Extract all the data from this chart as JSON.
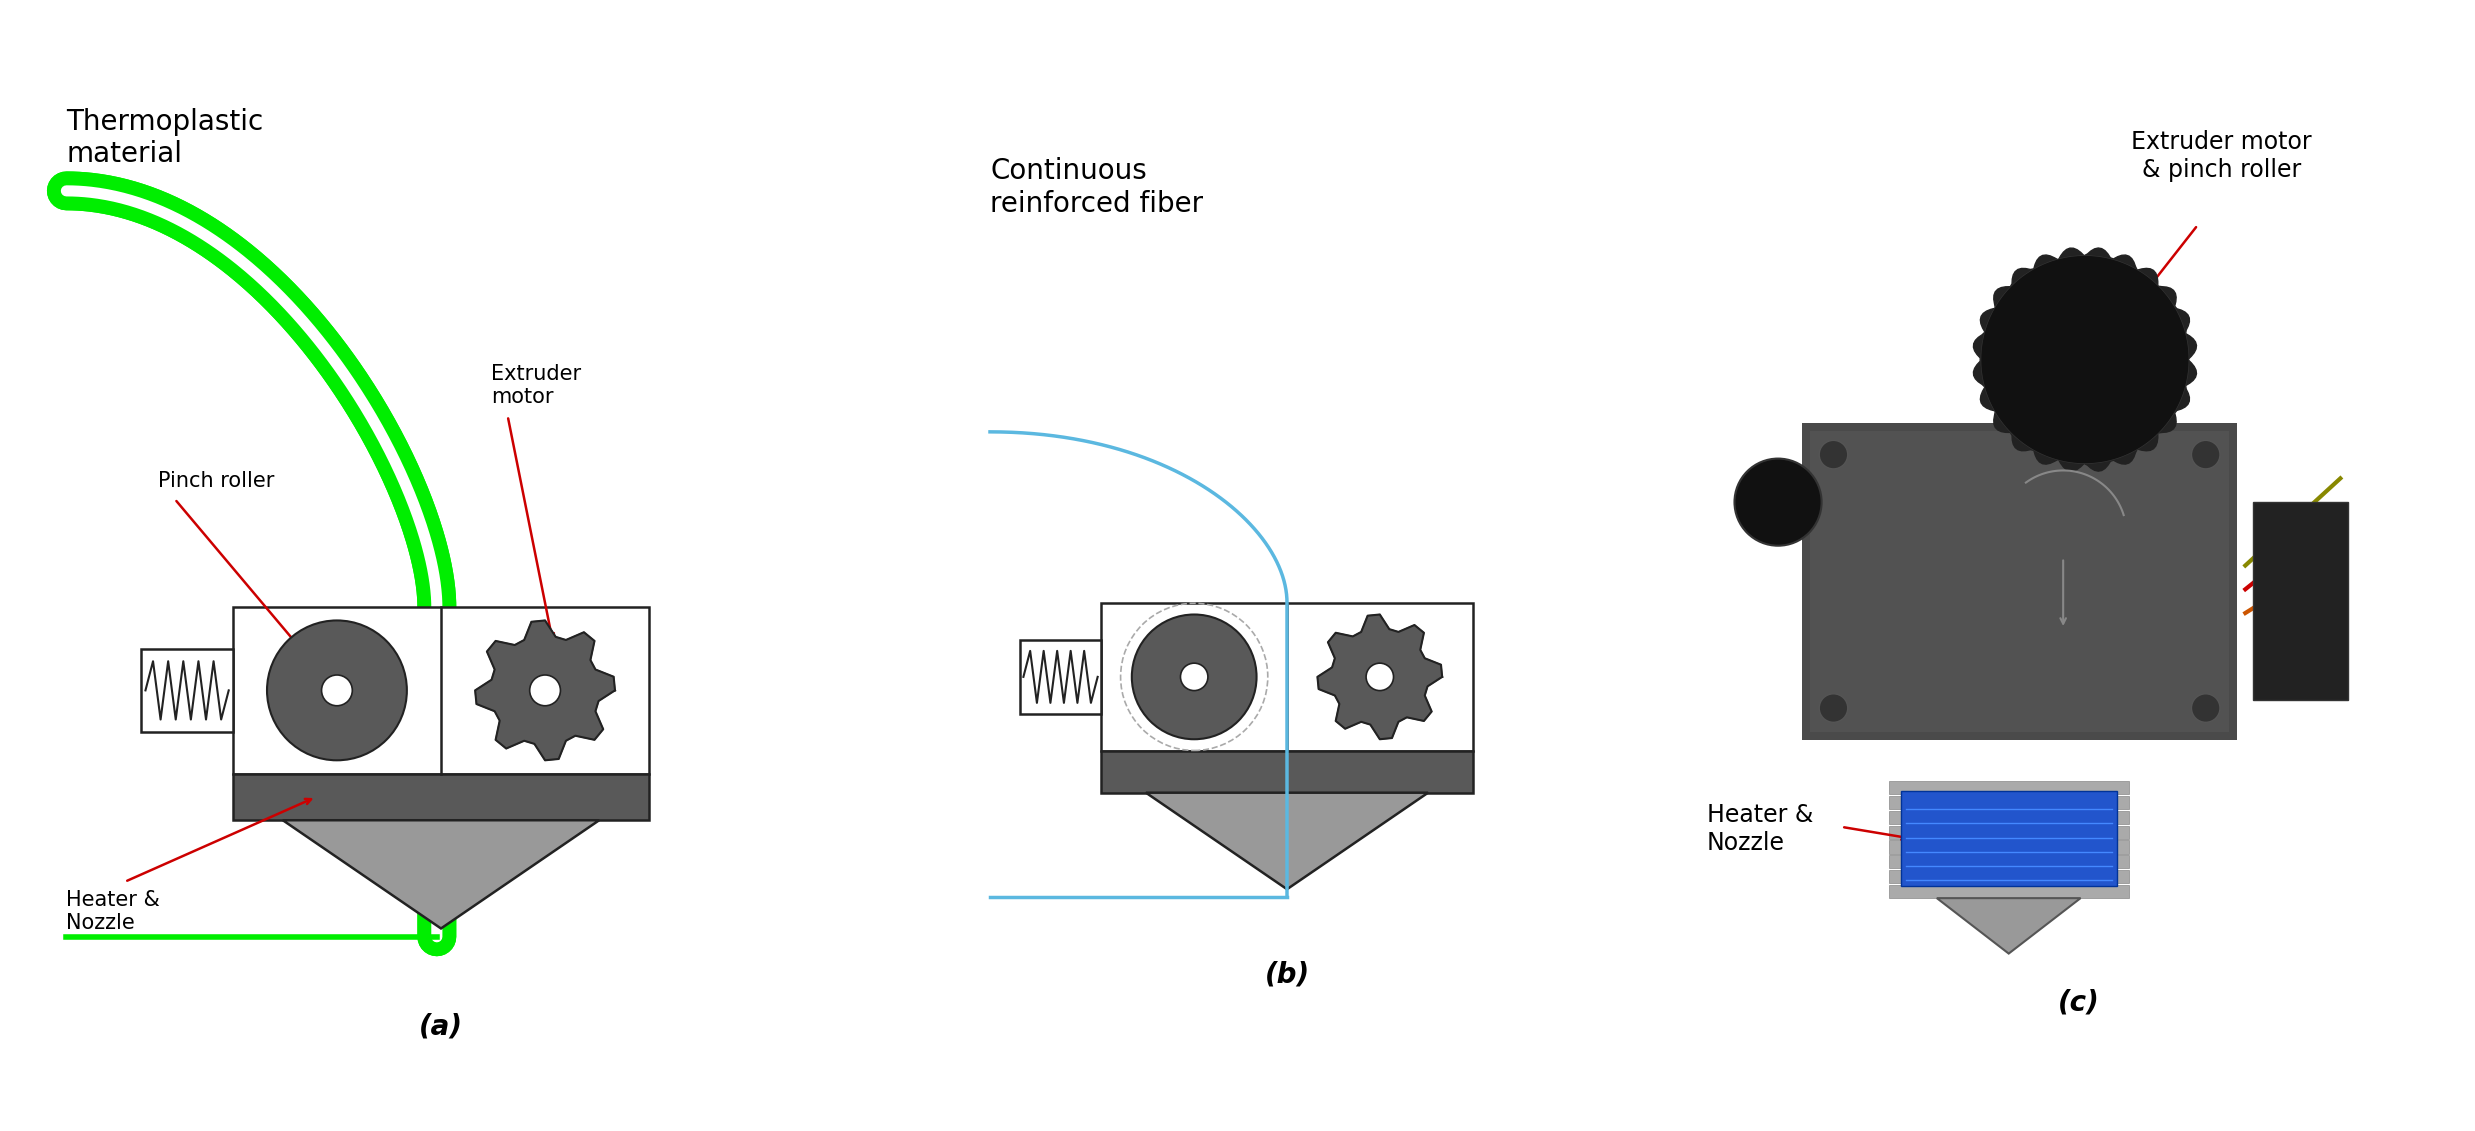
{
  "bg_color": "#ffffff",
  "title_a": "Thermoplastic\nmaterial",
  "title_b": "Continuous\nreinforced fiber",
  "title_c": "Extruder motor\n& pinch roller",
  "label_pinch": "Pinch roller",
  "label_extruder": "Extruder\nmotor",
  "label_heater_a": "Heater &\nNozzle",
  "label_heater_c": "Heater &\nNozzle",
  "sub_a": "(a)",
  "sub_b": "(b)",
  "sub_c": "(c)",
  "green_color": "#00ee00",
  "blue_color": "#5bb8e0",
  "dark_gray": "#595959",
  "mid_gray": "#808080",
  "light_gray": "#b0b0b0",
  "lighter_gray": "#c8c8c8",
  "box_outline": "#222222",
  "red_arrow": "#cc0000",
  "nozzle_gray": "#999999"
}
